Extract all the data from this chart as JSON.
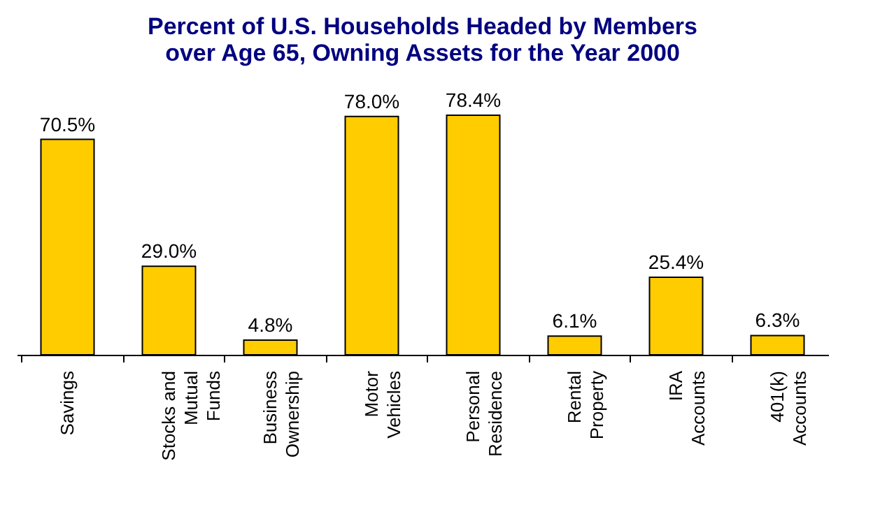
{
  "chart_data": {
    "type": "bar",
    "title": "Percent of U.S. Households Headed by Members over Age 65, Owning Assets for the Year 2000",
    "categories": [
      "Savings",
      "Stocks and Mutual Funds",
      "Business Ownership",
      "Motor Vehicles",
      "Personal Residence",
      "Rental Property",
      "IRA Accounts",
      "401(k) Accounts"
    ],
    "values": [
      70.5,
      29.0,
      4.8,
      78.0,
      78.4,
      6.1,
      25.4,
      6.3
    ],
    "value_labels": [
      "70.5%",
      "29.0%",
      "4.8%",
      "78.0%",
      "78.4%",
      "6.1%",
      "25.4%",
      "6.3%"
    ],
    "color": "#ffcc00",
    "grid": false
  }
}
